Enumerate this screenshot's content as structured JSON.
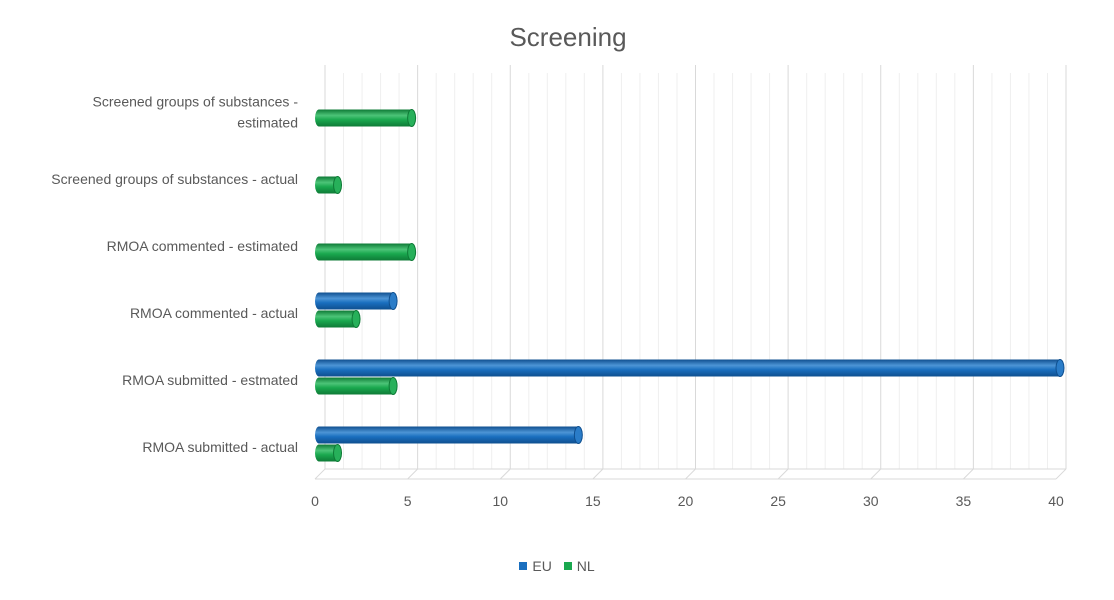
{
  "chart_data": {
    "type": "bar",
    "orientation": "horizontal",
    "title": "Screening",
    "categories": [
      "RMOA submitted - actual",
      "RMOA submitted - estmated",
      "RMOA commented - actual",
      "RMOA commented - estimated",
      "Screened groups of substances - actual",
      "Screened groups of substances - estimated"
    ],
    "category_lines": [
      [
        "RMOA submitted - actual"
      ],
      [
        "RMOA submitted - estmated"
      ],
      [
        "RMOA commented - actual"
      ],
      [
        "RMOA commented - estimated"
      ],
      [
        "Screened groups of substances - actual"
      ],
      [
        "Screened groups of substances -",
        "estimated"
      ]
    ],
    "series": [
      {
        "name": "EU",
        "color": "#1a6fbf",
        "values": [
          14,
          40,
          4,
          0,
          0,
          0
        ]
      },
      {
        "name": "NL",
        "color": "#1aa84f",
        "values": [
          1,
          4,
          2,
          5,
          1,
          5
        ]
      }
    ],
    "xlim": [
      0,
      40
    ],
    "x_ticks": [
      "0",
      "5",
      "10",
      "15",
      "20",
      "25",
      "30",
      "35",
      "40"
    ],
    "grid": true,
    "legend_position": "bottom"
  }
}
